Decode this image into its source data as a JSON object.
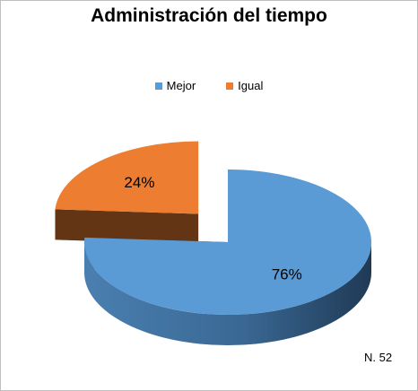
{
  "chart_data": {
    "type": "pie",
    "title": "Administración del tiempo",
    "slices": [
      {
        "label": "Mejor",
        "value": 76,
        "display": "76%",
        "color": "#5b9bd5"
      },
      {
        "label": "Igual",
        "value": 24,
        "display": "24%",
        "color": "#ed7d31"
      }
    ],
    "legend_position": "top",
    "exploded": "Igual",
    "three_d": true
  },
  "note": "N. 52"
}
